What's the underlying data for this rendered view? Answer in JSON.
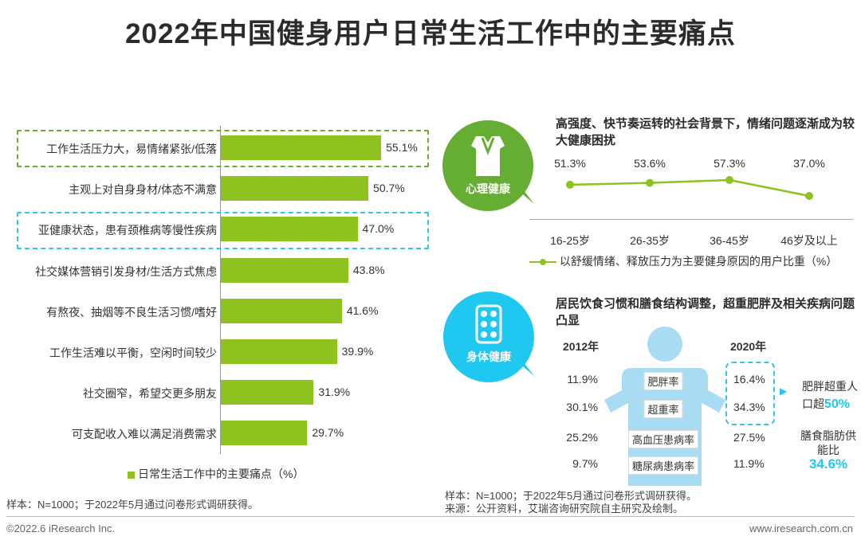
{
  "title": "2022年中国健身用户日常生活工作中的主要痛点",
  "chart_data": [
    {
      "type": "bar",
      "orientation": "horizontal",
      "title": "",
      "categories": [
        "工作生活压力大，易情绪紧张/低落",
        "主观上对自身身材/体态不满意",
        "亚健康状态，患有颈椎病等慢性疾病",
        "社交媒体营销引发身材/生活方式焦虑",
        "有熬夜、抽烟等不良生活习惯/嗜好",
        "工作生活难以平衡，空闲时间较少",
        "社交圈窄，希望交更多朋友",
        "可支配收入难以满足消费需求"
      ],
      "values": [
        55.1,
        50.7,
        47.0,
        43.8,
        41.6,
        39.9,
        31.9,
        29.7
      ],
      "value_labels": [
        "55.1%",
        "50.7%",
        "47.0%",
        "43.8%",
        "41.6%",
        "39.9%",
        "31.9%",
        "29.7%"
      ],
      "highlighted": [
        0,
        2
      ],
      "xlim": [
        0,
        100
      ],
      "legend": "日常生活工作中的主要痛点（%）",
      "color": "#8dc21f"
    },
    {
      "type": "line",
      "title": "高强度、快节奏运转的社会背景下，情绪问题逐渐成为较大健康困扰",
      "categories": [
        "16-25岁",
        "26-35岁",
        "36-45岁",
        "46岁及以上"
      ],
      "values": [
        51.3,
        53.6,
        57.3,
        37.0
      ],
      "value_labels": [
        "51.3%",
        "53.6%",
        "57.3%",
        "37.0%"
      ],
      "ylim": [
        0,
        100
      ],
      "legend": "以舒缓情绪、释放压力为主要健身原因的用户比重（%）",
      "color": "#8dc21f"
    },
    {
      "type": "table",
      "title": "居民饮食习惯和膳食结构调整，超重肥胖及相关疾病问题凸显",
      "columns": [
        "2012年",
        "2020年"
      ],
      "rows": [
        {
          "label": "肥胖率",
          "values": [
            "11.9%",
            "16.4%"
          ]
        },
        {
          "label": "超重率",
          "values": [
            "30.1%",
            "34.3%"
          ]
        },
        {
          "label": "高血压患病率",
          "values": [
            "25.2%",
            "27.5%"
          ]
        },
        {
          "label": "糖尿病患病率",
          "values": [
            "9.7%",
            "11.9%"
          ]
        }
      ]
    }
  ],
  "badges": {
    "mental": "心理健康",
    "physical": "身体健康"
  },
  "callouts": {
    "arrow": "▶",
    "obesity_line1": "肥胖超重人",
    "obesity_line2_prefix": "口超",
    "obesity_value": "50%",
    "fat_line1": "膳食脂肪供",
    "fat_line2": "能比",
    "fat_value": "34.6%"
  },
  "notes": {
    "left_sample": "样本：N=1000；于2022年5月通过问卷形式调研获得。",
    "right_sample": "样本：N=1000；于2022年5月通过问卷形式调研获得。",
    "right_source": "来源：公开资料，艾瑞咨询研究院自主研究及绘制。"
  },
  "footer": {
    "copyright": "©2022.6 iResearch Inc.",
    "website": "www.iresearch.com.cn"
  },
  "colors": {
    "green": "#8dc21f",
    "badge_green": "#65ad33",
    "cyan": "#1ec8f0",
    "body_blue": "#a9dcf2",
    "highlight_green": "#6aac2f",
    "highlight_cyan": "#35c3e8"
  }
}
